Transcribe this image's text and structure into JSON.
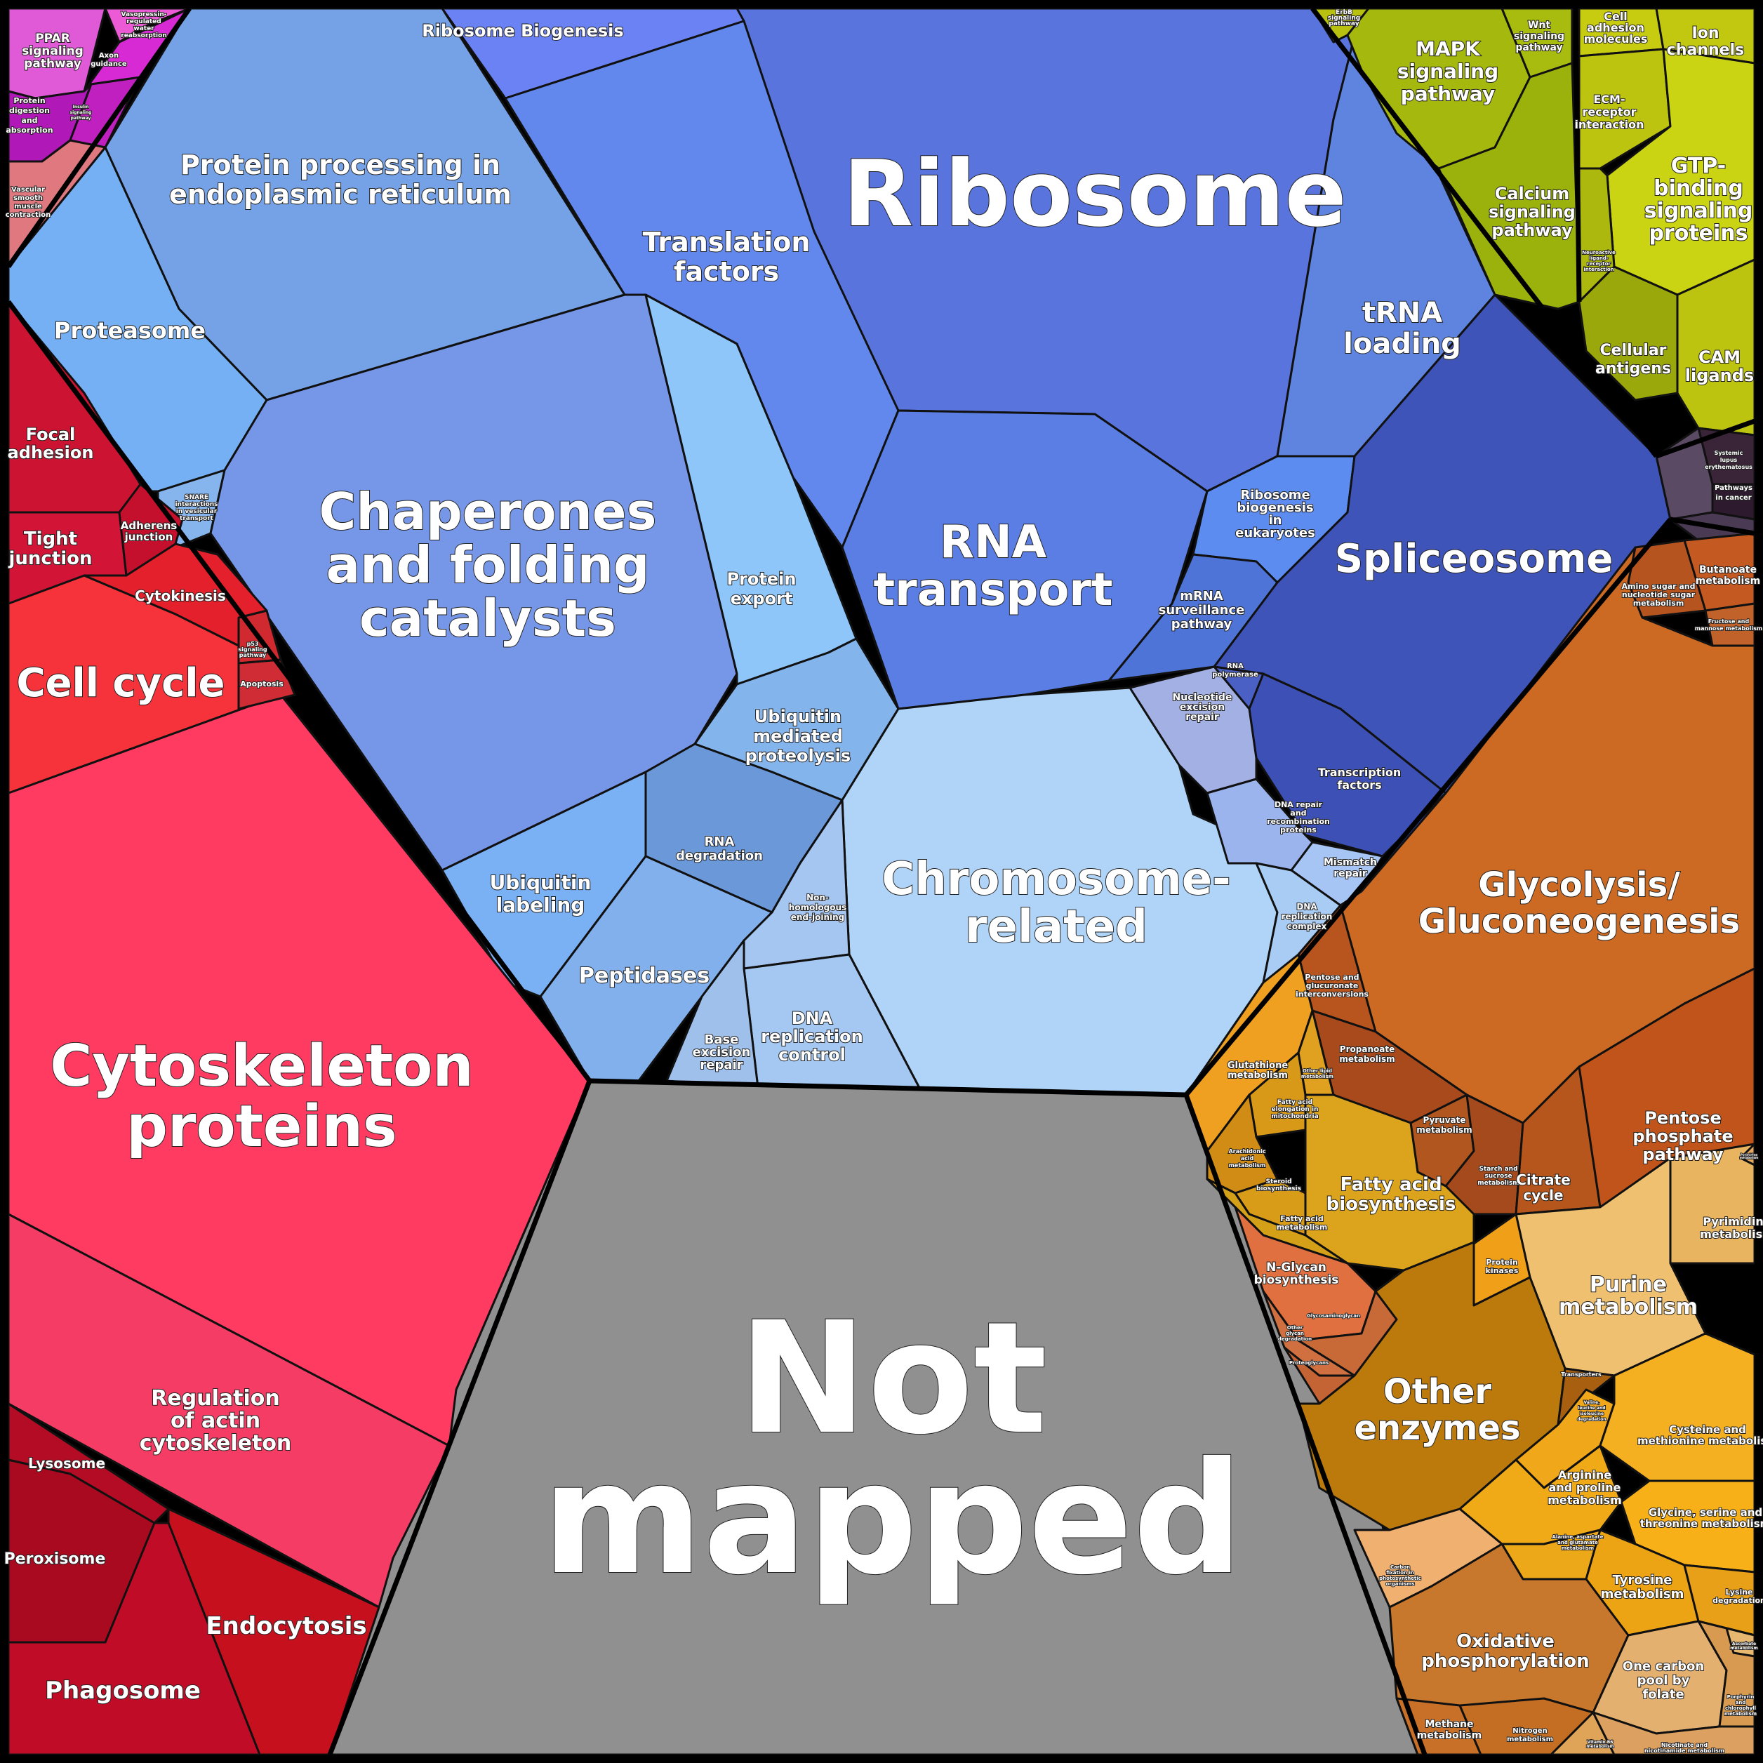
{
  "colors": {
    "blue_dark": "#4a5fc8",
    "blue_mid": "#5b7de6",
    "blue_light": "#7aa6f0",
    "blue_pale": "#a8ccf5",
    "red": "#ff3b62",
    "red_dark": "#c0102a",
    "red_mid": "#e21f3a",
    "grey": "#909090",
    "orange": "#cf6a22",
    "orange_light": "#f0a020",
    "yellow_green": "#a8c010",
    "yellow": "#c8cc10",
    "magenta": "#d820c8",
    "dark_purple": "#3a2a40"
  },
  "labels": {
    "ribosome": "Ribosome",
    "ribosome_biogenesis": "Ribosome Biogenesis",
    "protein_processing": [
      "Protein processing in",
      "endoplasmic reticulum"
    ],
    "translation_factors": [
      "Translation",
      "factors"
    ],
    "proteasome": "Proteasome",
    "chaperones": [
      "Chaperones",
      "and folding",
      "catalysts"
    ],
    "protein_export": [
      "Protein",
      "export"
    ],
    "trna_loading": [
      "tRNA",
      "loading"
    ],
    "rna_transport": [
      "RNA",
      "transport"
    ],
    "ribosome_biogenesis_euk": [
      "Ribosome",
      "biogenesis",
      "in",
      "eukaryotes"
    ],
    "mrna_surveillance": [
      "mRNA",
      "surveillance",
      "pathway"
    ],
    "spliceosome": "Spliceosome",
    "rna_polymerase": [
      "RNA",
      "polymerase"
    ],
    "ubiquitin_proteolysis": [
      "Ubiquitin",
      "mediated",
      "proteolysis"
    ],
    "rna_degradation": [
      "RNA",
      "degradation"
    ],
    "ubiquitin_labeling": [
      "Ubiquitin",
      "labeling"
    ],
    "peptidases": "Peptidases",
    "chromosome_related": [
      "Chromosome-",
      "related"
    ],
    "nucleotide_excision": [
      "Nucleotide",
      "excision",
      "repair"
    ],
    "transcription_factors": [
      "Transcription",
      "factors"
    ],
    "dna_repair": [
      "DNA repair",
      "and",
      "recombination",
      "proteins"
    ],
    "mismatch_repair": [
      "Mismatch",
      "repair"
    ],
    "dna_replication_complex": [
      "DNA",
      "replication",
      "complex"
    ],
    "nhej": [
      "Non-",
      "homologous",
      "end-joining"
    ],
    "dna_replication_control": [
      "DNA",
      "replication",
      "control"
    ],
    "base_excision": [
      "Base",
      "excision",
      "repair"
    ],
    "snare": [
      "SNARE",
      "interactions",
      "in vesicular",
      "transport"
    ],
    "not_mapped": [
      "Not",
      "mapped"
    ],
    "cytoskeleton": [
      "Cytoskeleton",
      "proteins"
    ],
    "regulation_actin": [
      "Regulation",
      "of actin",
      "cytoskeleton"
    ],
    "cell_cycle": "Cell cycle",
    "focal_adhesion": [
      "Focal",
      "adhesion"
    ],
    "tight_junction": [
      "Tight",
      "junction"
    ],
    "adherens_junction": [
      "Adherens",
      "junction"
    ],
    "cytokinesis": "Cytokinesis",
    "p53": [
      "p53",
      "signaling",
      "pathway"
    ],
    "apoptosis": "Apoptosis",
    "lysosome": "Lysosome",
    "peroxisome": "Peroxisome",
    "endocytosis": "Endocytosis",
    "phagosome": "Phagosome",
    "ppar": [
      "PPAR",
      "signaling",
      "pathway"
    ],
    "vasopressin": [
      "Vasopressin-",
      "regulated",
      "water",
      "reabsorption"
    ],
    "axon_guidance": [
      "Axon",
      "guidance"
    ],
    "protein_digestion": [
      "Protein",
      "digestion",
      "and",
      "absorption"
    ],
    "vascular_smooth": [
      "Vascular",
      "smooth",
      "muscle",
      "contraction"
    ],
    "insulin": [
      "Insulin",
      "signaling",
      "pathway"
    ],
    "mapk": [
      "MAPK",
      "signaling",
      "pathway"
    ],
    "wnt": [
      "Wnt",
      "signaling",
      "pathway"
    ],
    "erbb": [
      "ErbB",
      "signaling",
      "pathway"
    ],
    "calcium": [
      "Calcium",
      "signaling",
      "pathway"
    ],
    "cell_adhesion": [
      "Cell",
      "adhesion",
      "molecules"
    ],
    "ion_channels": [
      "Ion",
      "channels"
    ],
    "ecm_receptor": [
      "ECM-",
      "receptor",
      "interaction"
    ],
    "gtp_binding": [
      "GTP-",
      "binding",
      "signaling",
      "proteins"
    ],
    "cellular_antigens": [
      "Cellular",
      "antigens"
    ],
    "cam_ligands": [
      "CAM",
      "ligands"
    ],
    "neuroactive": [
      "Neuroactive",
      "ligand-",
      "receptor",
      "interaction"
    ],
    "systemic_lupus": [
      "Systemic",
      "lupus",
      "erythematosus"
    ],
    "pathways_cancer": [
      "Pathways",
      "in cancer"
    ],
    "butanoate": [
      "Butanoate",
      "metabolism"
    ],
    "amino_sugar": [
      "Amino sugar and",
      "nucleotide sugar",
      "metabolism"
    ],
    "fructose": [
      "Fructose and",
      "mannose metabolism"
    ],
    "glycolysis": [
      "Glycolysis/",
      "Gluconeogenesis"
    ],
    "pentose_glucuronate": [
      "Pentose and",
      "glucuronate",
      "interconversions"
    ],
    "propanoate": [
      "Propanoate",
      "metabolism"
    ],
    "pyruvate": [
      "Pyruvate",
      "metabolism"
    ],
    "pentose_phosphate": [
      "Pentose",
      "phosphate",
      "pathway"
    ],
    "citrate": [
      "Citrate",
      "cycle"
    ],
    "starch": [
      "Starch and",
      "sucrose",
      "metabolism"
    ],
    "glutathione": [
      "Glutathione",
      "metabolism"
    ],
    "fatty_acid_elongation": [
      "Fatty acid",
      "elongation in",
      "mitochondria"
    ],
    "fatty_acid_biosynthesis": [
      "Fatty acid",
      "biosynthesis"
    ],
    "arachidonic": [
      "Arachidonic",
      "acid",
      "metabolism"
    ],
    "steroid": [
      "Steroid",
      "biosynthesis"
    ],
    "fatty_acid_metabolism": [
      "Fatty acid",
      "metabolism"
    ],
    "other_lipid": [
      "Other lipid",
      "metabolism"
    ],
    "pyrimidine": [
      "Pyrimidine",
      "metabolism"
    ],
    "purine": [
      "Purine",
      "metabolism"
    ],
    "protein_kinases": [
      "Protein",
      "kinases"
    ],
    "nglycan": [
      "N-Glycan",
      "biosynthesis"
    ],
    "glycosaminoglycan": "Glycosaminoglycan",
    "other_glycan": [
      "Other",
      "glycan",
      "degradation"
    ],
    "proteoglycans": "Proteoglycans",
    "other_enzymes": [
      "Other",
      "enzymes"
    ],
    "transporters": "Transporters",
    "valine": [
      "Valine,",
      "leucine and",
      "isoleucine",
      "degradation"
    ],
    "cysteine": [
      "Cysteine and",
      "methionine metabolism"
    ],
    "arginine": [
      "Arginine",
      "and proline",
      "metabolism"
    ],
    "glycine": [
      "Glycine, serine and",
      "threonine metabolism"
    ],
    "alanine": [
      "Alanine, aspartate",
      "and glutamate",
      "metabolism"
    ],
    "tyrosine": [
      "Tyrosine",
      "metabolism"
    ],
    "lysine": [
      "Lysine",
      "degradation"
    ],
    "carbon_fixation": [
      "Carbon",
      "fixation in",
      "photosynthetic",
      "organisms"
    ],
    "oxidative": [
      "Oxidative",
      "phosphorylation"
    ],
    "one_carbon": [
      "One carbon",
      "pool by",
      "folate"
    ],
    "methane": [
      "Methane",
      "metabolism"
    ],
    "nitrogen": [
      "Nitrogen",
      "metabolism"
    ],
    "vitamin_b6": [
      "Vitamin B6",
      "metabolism"
    ],
    "nicotinate": [
      "Nicotinate and",
      "nicotinamide metabolism"
    ],
    "porphyrin": [
      "Porphyrin",
      "and",
      "chlorophyll",
      "metabolism"
    ],
    "ascorbate": [
      "Ascorbate",
      "metabolism"
    ],
    "pyrimidine2": [
      "Pyrimidine",
      "metabolism"
    ]
  }
}
